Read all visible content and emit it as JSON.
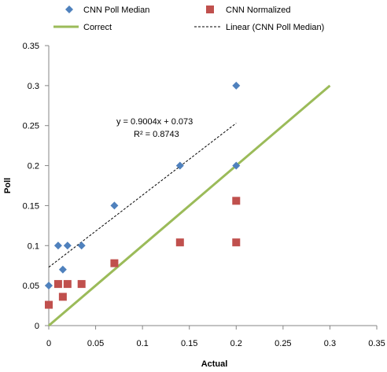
{
  "chart_data": {
    "type": "scatter",
    "title": "",
    "xlabel": "Actual",
    "ylabel": "Poll",
    "xlim": [
      0,
      0.35
    ],
    "ylim": [
      0,
      0.35
    ],
    "x_ticks": [
      "0",
      "0.05",
      "0.1",
      "0.15",
      "0.2",
      "0.25",
      "0.3",
      "0.35"
    ],
    "y_ticks": [
      "0",
      "0.05",
      "0.1",
      "0.15",
      "0.2",
      "0.25",
      "0.3",
      "0.35"
    ],
    "grid": false,
    "legend_position": "top",
    "series": [
      {
        "name": "CNN Poll Median",
        "marker": "diamond",
        "color": "#4f81bd",
        "points": [
          {
            "x": 0.0,
            "y": 0.05
          },
          {
            "x": 0.01,
            "y": 0.1
          },
          {
            "x": 0.015,
            "y": 0.07
          },
          {
            "x": 0.02,
            "y": 0.1
          },
          {
            "x": 0.035,
            "y": 0.1
          },
          {
            "x": 0.07,
            "y": 0.15
          },
          {
            "x": 0.14,
            "y": 0.2
          },
          {
            "x": 0.2,
            "y": 0.3
          },
          {
            "x": 0.2,
            "y": 0.2
          }
        ]
      },
      {
        "name": "CNN Normalized",
        "marker": "square",
        "color": "#c0504d",
        "points": [
          {
            "x": 0.0,
            "y": 0.026
          },
          {
            "x": 0.01,
            "y": 0.052
          },
          {
            "x": 0.015,
            "y": 0.036
          },
          {
            "x": 0.02,
            "y": 0.052
          },
          {
            "x": 0.035,
            "y": 0.052
          },
          {
            "x": 0.07,
            "y": 0.078
          },
          {
            "x": 0.14,
            "y": 0.104
          },
          {
            "x": 0.2,
            "y": 0.156
          },
          {
            "x": 0.2,
            "y": 0.104
          }
        ]
      },
      {
        "name": "Correct",
        "type": "line",
        "color": "#9bbb59",
        "points": [
          {
            "x": 0,
            "y": 0
          },
          {
            "x": 0.3,
            "y": 0.3
          }
        ]
      },
      {
        "name": "Linear (CNN Poll Median)",
        "type": "trendline",
        "style": "dashed",
        "color": "#000000",
        "slope": 0.9004,
        "intercept": 0.073,
        "x_range": [
          0,
          0.2
        ]
      }
    ],
    "annotations": [
      {
        "text": "y = 0.9004x + 0.073"
      },
      {
        "text": "R² = 0.8743"
      }
    ]
  }
}
